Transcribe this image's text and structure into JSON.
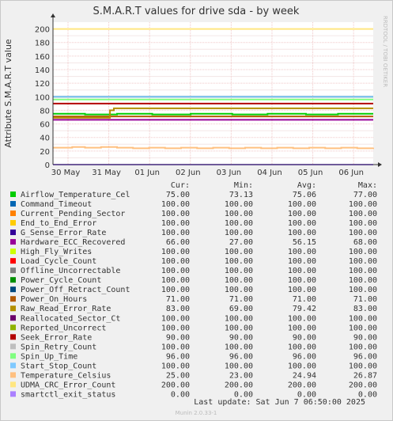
{
  "chart_data": {
    "type": "line",
    "title": "S.M.A.R.T values for drive sda - by week",
    "ylabel": "Attribute S.M.A.R.T value",
    "side_label": "RRDTOOL / TOBI OETIKER",
    "footer": "Munin 2.0.33-1",
    "last_update": "Last update:  Sat Jun  7 06:50:00 2025",
    "ylim": [
      0,
      210
    ],
    "yticks": [
      "0",
      "20",
      "40",
      "60",
      "80",
      "100",
      "120",
      "140",
      "160",
      "180",
      "200"
    ],
    "xticks": [
      "30 May",
      "31 May",
      "01 Jun",
      "02 Jun",
      "03 Jun",
      "04 Jun",
      "05 Jun",
      "06 Jun"
    ],
    "grid": true,
    "legend_columns": [
      "Cur:",
      "Min:",
      "Avg:",
      "Max:"
    ],
    "series": [
      {
        "name": "Airflow_Temperature_Cel",
        "color": "#00cc00",
        "cur": "75.00",
        "min": "73.13",
        "avg": "75.06",
        "max": "77.00",
        "points": [
          [
            0,
            75
          ],
          [
            0.09,
            75
          ],
          [
            0.1,
            74
          ],
          [
            0.19,
            74
          ],
          [
            0.2,
            75
          ],
          [
            0.3,
            75
          ],
          [
            0.31,
            74
          ],
          [
            0.42,
            74
          ],
          [
            0.43,
            75
          ],
          [
            0.55,
            75
          ],
          [
            0.56,
            74
          ],
          [
            0.66,
            74
          ],
          [
            0.67,
            75
          ],
          [
            0.78,
            75
          ],
          [
            0.79,
            74
          ],
          [
            0.88,
            74
          ],
          [
            0.89,
            75
          ],
          [
            1,
            75
          ]
        ]
      },
      {
        "name": "Command_Timeout",
        "color": "#0066b3",
        "cur": "100.00",
        "min": "100.00",
        "avg": "100.00",
        "max": "100.00",
        "points": [
          [
            0,
            100
          ],
          [
            1,
            100
          ]
        ]
      },
      {
        "name": "Current_Pending_Sector",
        "color": "#ff8000",
        "cur": "100.00",
        "min": "100.00",
        "avg": "100.00",
        "max": "100.00",
        "points": [
          [
            0,
            100
          ],
          [
            1,
            100
          ]
        ]
      },
      {
        "name": "End_to_End_Error",
        "color": "#ffcc00",
        "cur": "100.00",
        "min": "100.00",
        "avg": "100.00",
        "max": "100.00",
        "points": [
          [
            0,
            100
          ],
          [
            1,
            100
          ]
        ]
      },
      {
        "name": "G_Sense_Error_Rate",
        "color": "#330099",
        "cur": "100.00",
        "min": "100.00",
        "avg": "100.00",
        "max": "100.00",
        "points": [
          [
            0,
            100
          ],
          [
            1,
            100
          ]
        ]
      },
      {
        "name": "Hardware_ECC_Recovered",
        "color": "#990099",
        "cur": "66.00",
        "min": "27.00",
        "avg": "56.15",
        "max": "68.00",
        "points": [
          [
            0,
            66
          ],
          [
            1,
            66
          ]
        ]
      },
      {
        "name": "High_Fly_Writes",
        "color": "#ccff00",
        "cur": "100.00",
        "min": "100.00",
        "avg": "100.00",
        "max": "100.00",
        "points": [
          [
            0,
            100
          ],
          [
            1,
            100
          ]
        ]
      },
      {
        "name": "Load_Cycle_Count",
        "color": "#ff0000",
        "cur": "100.00",
        "min": "100.00",
        "avg": "100.00",
        "max": "100.00",
        "points": [
          [
            0,
            100
          ],
          [
            1,
            100
          ]
        ]
      },
      {
        "name": "Offline_Uncorrectable",
        "color": "#808080",
        "cur": "100.00",
        "min": "100.00",
        "avg": "100.00",
        "max": "100.00",
        "points": [
          [
            0,
            100
          ],
          [
            1,
            100
          ]
        ]
      },
      {
        "name": "Power_Cycle_Count",
        "color": "#008f00",
        "cur": "100.00",
        "min": "100.00",
        "avg": "100.00",
        "max": "100.00",
        "points": [
          [
            0,
            100
          ],
          [
            1,
            100
          ]
        ]
      },
      {
        "name": "Power_Off_Retract_Count",
        "color": "#00487d",
        "cur": "100.00",
        "min": "100.00",
        "avg": "100.00",
        "max": "100.00",
        "points": [
          [
            0,
            100
          ],
          [
            1,
            100
          ]
        ]
      },
      {
        "name": "Power_On_Hours",
        "color": "#b35a00",
        "cur": "71.00",
        "min": "71.00",
        "avg": "71.00",
        "max": "71.00",
        "points": [
          [
            0,
            71
          ],
          [
            1,
            71
          ]
        ]
      },
      {
        "name": "Raw_Read_Error_Rate",
        "color": "#b38f00",
        "cur": "83.00",
        "min": "69.00",
        "avg": "79.42",
        "max": "83.00",
        "points": [
          [
            0,
            69
          ],
          [
            0.171,
            69
          ],
          [
            0.178,
            80
          ],
          [
            0.19,
            83
          ],
          [
            1,
            83
          ]
        ]
      },
      {
        "name": "Reallocated_Sector_Ct",
        "color": "#6b006b",
        "cur": "100.00",
        "min": "100.00",
        "avg": "100.00",
        "max": "100.00",
        "points": [
          [
            0,
            100
          ],
          [
            1,
            100
          ]
        ]
      },
      {
        "name": "Reported_Uncorrect",
        "color": "#8fb300",
        "cur": "100.00",
        "min": "100.00",
        "avg": "100.00",
        "max": "100.00",
        "points": [
          [
            0,
            100
          ],
          [
            1,
            100
          ]
        ]
      },
      {
        "name": "Seek_Error_Rate",
        "color": "#b30000",
        "cur": "90.00",
        "min": "90.00",
        "avg": "90.00",
        "max": "90.00",
        "points": [
          [
            0,
            90
          ],
          [
            1,
            90
          ]
        ]
      },
      {
        "name": "Spin_Retry_Count",
        "color": "#bebebe",
        "cur": "100.00",
        "min": "100.00",
        "avg": "100.00",
        "max": "100.00",
        "points": [
          [
            0,
            100
          ],
          [
            1,
            100
          ]
        ]
      },
      {
        "name": "Spin_Up_Time",
        "color": "#80ff80",
        "cur": "96.00",
        "min": "96.00",
        "avg": "96.00",
        "max": "96.00",
        "points": [
          [
            0,
            96
          ],
          [
            1,
            96
          ]
        ]
      },
      {
        "name": "Start_Stop_Count",
        "color": "#80c9ff",
        "cur": "100.00",
        "min": "100.00",
        "avg": "100.00",
        "max": "100.00",
        "points": [
          [
            0,
            100
          ],
          [
            1,
            100
          ]
        ]
      },
      {
        "name": "Temperature_Celsius",
        "color": "#ffc080",
        "cur": "25.00",
        "min": "23.00",
        "avg": "24.94",
        "max": "26.87",
        "points": [
          [
            0,
            25
          ],
          [
            0.05,
            25
          ],
          [
            0.06,
            26
          ],
          [
            0.1,
            25
          ],
          [
            0.15,
            26
          ],
          [
            0.2,
            25
          ],
          [
            0.25,
            24
          ],
          [
            0.3,
            25
          ],
          [
            0.35,
            24
          ],
          [
            0.4,
            25
          ],
          [
            0.45,
            24
          ],
          [
            0.5,
            25
          ],
          [
            0.55,
            24
          ],
          [
            0.6,
            25
          ],
          [
            0.65,
            24
          ],
          [
            0.7,
            25
          ],
          [
            0.75,
            24
          ],
          [
            0.8,
            25
          ],
          [
            0.85,
            24
          ],
          [
            0.9,
            25
          ],
          [
            0.95,
            24
          ],
          [
            1,
            25
          ]
        ]
      },
      {
        "name": "UDMA_CRC_Error_Count",
        "color": "#ffe680",
        "cur": "200.00",
        "min": "200.00",
        "avg": "200.00",
        "max": "200.00",
        "points": [
          [
            0,
            200
          ],
          [
            1,
            200
          ]
        ]
      },
      {
        "name": "smartctl_exit_status",
        "color": "#aa80ff",
        "cur": "0.00",
        "min": "0.00",
        "avg": "0.00",
        "max": "0.00",
        "points": [
          [
            0,
            0
          ],
          [
            1,
            0
          ]
        ]
      }
    ]
  }
}
